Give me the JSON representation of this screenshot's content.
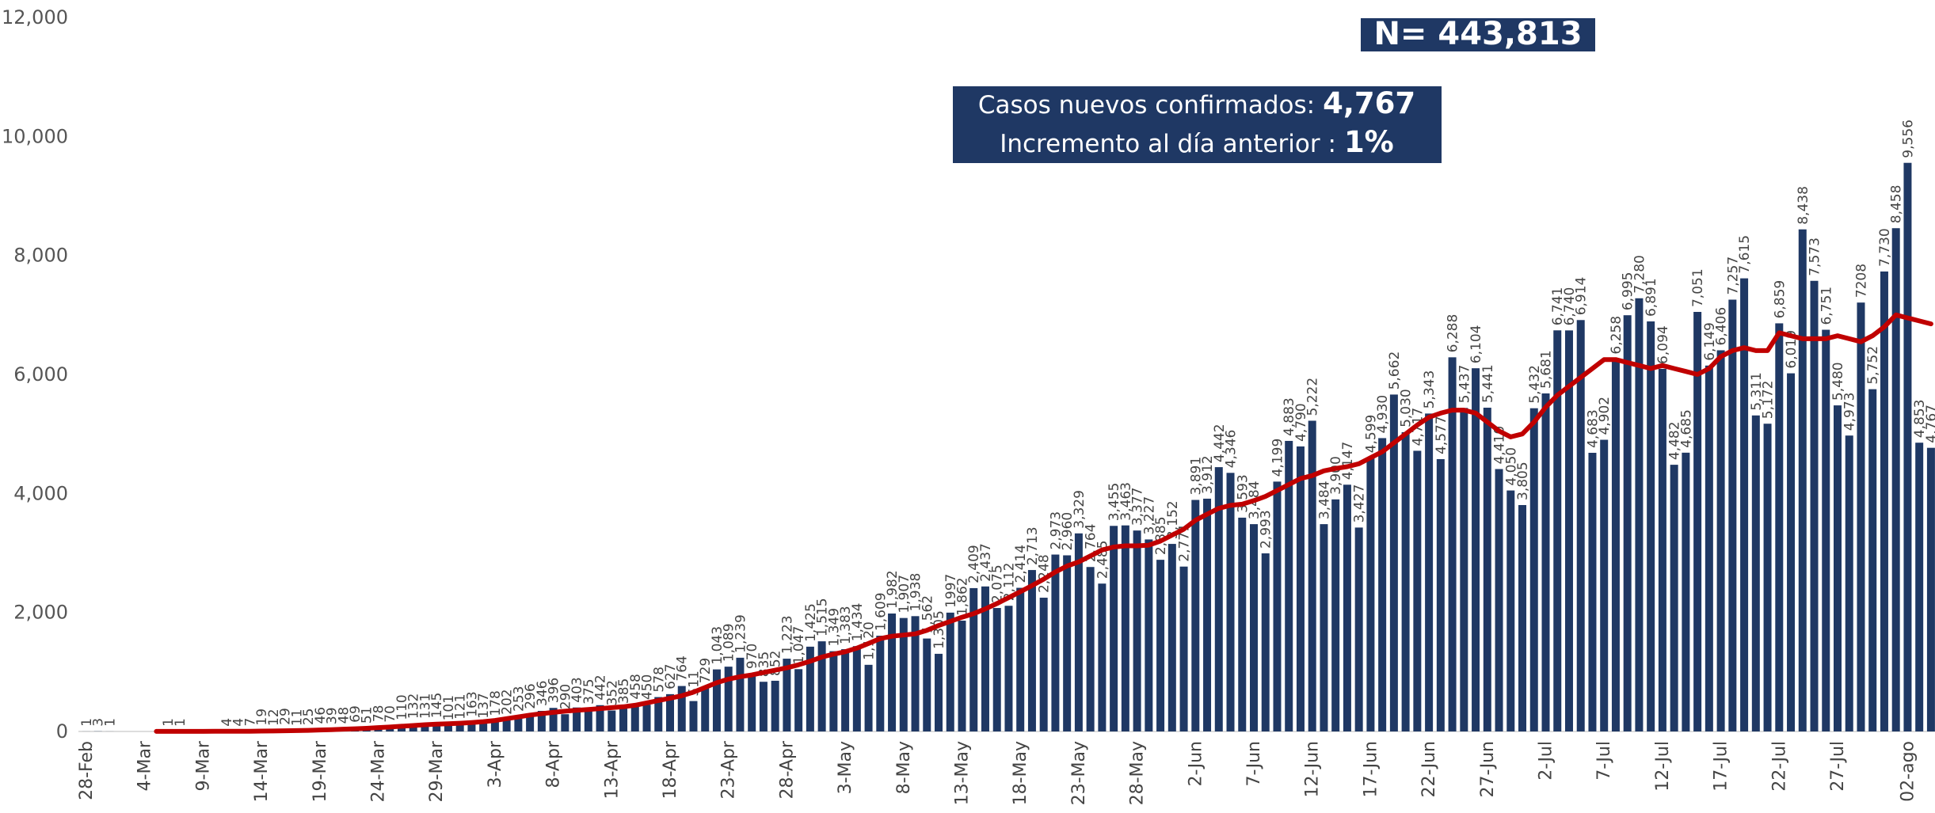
{
  "chart_data": {
    "type": "bar",
    "annotations": {
      "total": "N= 443,813",
      "new_cases_label": "Casos nuevos confirmados:",
      "new_cases_value": "4,767",
      "increase_label": "Incremento al día anterior :",
      "increase_value": "1%"
    },
    "categories": [
      "28-Feb",
      null,
      null,
      null,
      null,
      "4-Mar",
      null,
      null,
      null,
      null,
      "9-Mar",
      null,
      null,
      null,
      null,
      "14-Mar",
      null,
      null,
      null,
      null,
      "19-Mar",
      null,
      null,
      null,
      null,
      "24-Mar",
      null,
      null,
      null,
      null,
      "29-Mar",
      null,
      null,
      null,
      null,
      "3-Apr",
      null,
      null,
      null,
      null,
      "8-Apr",
      null,
      null,
      null,
      null,
      "13-Apr",
      null,
      null,
      null,
      null,
      "18-Apr",
      null,
      null,
      null,
      null,
      "23-Apr",
      null,
      null,
      null,
      null,
      "28-Apr",
      null,
      null,
      null,
      null,
      "3-May",
      null,
      null,
      null,
      null,
      "8-May",
      null,
      null,
      null,
      null,
      "13-May",
      null,
      null,
      null,
      null,
      "18-May",
      null,
      null,
      null,
      null,
      "23-May",
      null,
      null,
      null,
      null,
      "28-May",
      null,
      null,
      null,
      null,
      "2-Jun",
      null,
      null,
      null,
      null,
      "7-Jun",
      null,
      null,
      null,
      null,
      "12-Jun",
      null,
      null,
      null,
      null,
      "17-Jun",
      null,
      null,
      null,
      null,
      "22-Jun",
      null,
      null,
      null,
      null,
      "27-Jun",
      null,
      null,
      null,
      null,
      "2-Jul",
      null,
      null,
      null,
      null,
      "7-Jul",
      null,
      null,
      null,
      null,
      "12-Jul",
      null,
      null,
      null,
      null,
      "17-Jul",
      null,
      null,
      null,
      null,
      "22-Jul",
      null,
      null,
      null,
      null,
      "27-Jul",
      null,
      null,
      null,
      null,
      null,
      "02-ago",
      null,
      null
    ],
    "series": [
      {
        "type": "bar",
        "color": "#1f3864",
        "values": [
          1,
          3,
          1,
          0,
          0,
          0,
          0,
          1,
          1,
          0,
          0,
          0,
          4,
          4,
          7,
          19,
          12,
          29,
          11,
          25,
          46,
          39,
          48,
          69,
          51,
          78,
          70,
          110,
          132,
          131,
          145,
          101,
          121,
          163,
          137,
          178,
          202,
          253,
          296,
          346,
          396,
          290,
          403,
          375,
          442,
          352,
          385,
          458,
          450,
          578,
          627,
          764,
          511,
          729,
          1043,
          1089,
          1239,
          970,
          835,
          852,
          1223,
          1047,
          1425,
          1515,
          1349,
          1383,
          1434,
          1120,
          1609,
          1982,
          1907,
          1938,
          1562,
          1305,
          1997,
          1862,
          2409,
          2437,
          2075,
          2112,
          2414,
          2713,
          2248,
          2973,
          2960,
          3329,
          2764,
          2485,
          3455,
          3463,
          3377,
          3227,
          2885,
          3152,
          2771,
          3891,
          3912,
          4442,
          4346,
          3593,
          3484,
          2993,
          4199,
          4883,
          4790,
          5222,
          3484,
          3900,
          4147,
          3427,
          4599,
          4930,
          5662,
          5030,
          4717,
          5343,
          4577,
          6288,
          5437,
          6104,
          5441,
          4410,
          4050,
          3805,
          5432,
          5681,
          6741,
          6740,
          6914,
          4683,
          4902,
          6258,
          6995,
          7280,
          6891,
          6094,
          4482,
          4685,
          7051,
          6149,
          6406,
          7257,
          7615,
          5311,
          5172,
          6859,
          6019,
          8438,
          7573,
          6751,
          5480,
          4973,
          7208,
          5752,
          7730,
          8458,
          9556,
          4853,
          4767
        ],
        "value_labels": [
          "1",
          "3",
          "1",
          null,
          null,
          null,
          null,
          "1",
          "1",
          null,
          null,
          null,
          "4",
          "4",
          "7",
          "19",
          "12",
          "29",
          "11",
          "25",
          "46",
          "39",
          "48",
          "69",
          "51",
          "78",
          "70",
          "110",
          "132",
          "131",
          "145",
          "101",
          "121",
          "163",
          "137",
          "178",
          "202",
          "253",
          "296",
          "346",
          "396",
          "290",
          "403",
          "375",
          "442",
          "352",
          "385",
          "458",
          "450",
          "578",
          "627",
          "764",
          "511",
          "729",
          "1,043",
          "1,089",
          "1,239",
          "970",
          "835",
          "852",
          "1,223",
          "1,047",
          "1,425",
          "1,515",
          "1,349",
          "1,383",
          "1,434",
          "1,120",
          "1,609",
          "1,982",
          "1,907",
          "1,938",
          "1,562",
          "1,305",
          "1997",
          "1,862",
          "2,409",
          "2,437",
          "2,075",
          "2,112",
          "2,414",
          "2,713",
          "2,248",
          "2,973",
          "2,960",
          "3,329",
          "2,764",
          "2,485",
          "3,455",
          "3,463",
          "3,377",
          "3,227",
          "2,885",
          "3,152",
          "2,771",
          "3,891",
          "3,912",
          "4,442",
          "4,346",
          "3,593",
          "3,484",
          "2,993",
          "4,199",
          "4,883",
          "4,790",
          "5,222",
          "3,484",
          "3,900",
          "4,147",
          "3,427",
          "4,599",
          "4,930",
          "5,662",
          "5,030",
          "4,717",
          "5,343",
          "4,577",
          "6,288",
          "5,437",
          "6,104",
          "5,441",
          "4,410",
          "4,050",
          "3,805",
          "5,432",
          "5,681",
          "6,741",
          "6,740",
          "6,914",
          "4,683",
          "4,902",
          "6,258",
          "6,995",
          "7,280",
          "6,891",
          "6,094",
          "4,482",
          "4,685",
          "7,051",
          "6,149",
          "6,406",
          "7,257",
          "7,615",
          "5,311",
          "5,172",
          "6,859",
          "6,019",
          "8,438",
          "7,573",
          "6,751",
          "5,480",
          "4,973",
          "7208",
          "5,752",
          "7,730",
          "8,458",
          "9,556",
          "4,853",
          "4,767"
        ]
      },
      {
        "type": "line",
        "color": "#c00000",
        "values": [
          null,
          null,
          null,
          null,
          null,
          null,
          1,
          1,
          1,
          1,
          1,
          2,
          2,
          2,
          3,
          6,
          8,
          12,
          15,
          19,
          25,
          31,
          38,
          45,
          53,
          65,
          75,
          88,
          100,
          113,
          122,
          130,
          138,
          150,
          165,
          185,
          215,
          245,
          275,
          300,
          320,
          340,
          355,
          370,
          385,
          400,
          415,
          440,
          480,
          520,
          560,
          600,
          660,
          740,
          820,
          880,
          920,
          950,
          990,
          1030,
          1070,
          1120,
          1180,
          1250,
          1300,
          1340,
          1400,
          1480,
          1560,
          1600,
          1620,
          1640,
          1700,
          1780,
          1850,
          1920,
          1980,
          2060,
          2150,
          2250,
          2350,
          2450,
          2560,
          2680,
          2780,
          2850,
          2950,
          3050,
          3100,
          3120,
          3120,
          3130,
          3200,
          3300,
          3400,
          3550,
          3650,
          3750,
          3800,
          3820,
          3880,
          3950,
          4050,
          4150,
          4250,
          4300,
          4380,
          4420,
          4450,
          4500,
          4600,
          4700,
          4850,
          5000,
          5150,
          5280,
          5350,
          5400,
          5400,
          5350,
          5200,
          5050,
          4950,
          5000,
          5200,
          5450,
          5650,
          5800,
          5950,
          6100,
          6250,
          6250,
          6200,
          6150,
          6100,
          6150,
          6100,
          6050,
          6000,
          6100,
          6300,
          6400,
          6450,
          6400,
          6400,
          6700,
          6650,
          6600,
          6600,
          6600,
          6650,
          6600,
          6550,
          6650,
          6800,
          7000,
          6950,
          6900,
          6850
        ]
      }
    ],
    "ylim": [
      0,
      12000
    ],
    "yticks": [
      0,
      {
        "value": 2000,
        "label": "2,000"
      },
      {
        "value": 4000,
        "label": "4,000"
      },
      {
        "value": 6000,
        "label": "6,000"
      },
      {
        "value": 8000,
        "label": "8,000"
      },
      {
        "value": 10000,
        "label": "10,000"
      },
      {
        "value": 12000,
        "label": "12,000"
      }
    ],
    "grid": false
  }
}
